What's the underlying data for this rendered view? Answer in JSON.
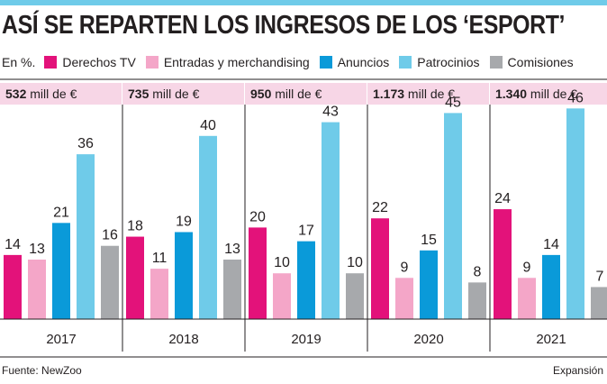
{
  "title": "ASÍ SE REPARTEN LOS INGRESOS DE LOS ‘ESPORT’",
  "unit": "En %.",
  "footer": {
    "source": "Fuente: NewZoo",
    "brand": "Expansión"
  },
  "chart_data": {
    "type": "bar",
    "title": "ASÍ SE REPARTEN LOS INGRESOS DE LOS ‘ESPORT’",
    "ylabel": "En %.",
    "xlabel": "",
    "ylim": [
      0,
      50
    ],
    "legend": "top",
    "grid": false,
    "categories": [
      "2017",
      "2018",
      "2019",
      "2020",
      "2021"
    ],
    "totals": [
      "532 mill de €",
      "735 mill de €",
      "950 mill de €",
      "1.173 mill de €",
      "1.340 mill de €"
    ],
    "series": [
      {
        "name": "Derechos TV",
        "color": "#e3127a",
        "values": [
          14,
          18,
          20,
          22,
          24
        ]
      },
      {
        "name": "Entradas y merchandising",
        "color": "#f4a6c8",
        "values": [
          13,
          11,
          10,
          9,
          9
        ]
      },
      {
        "name": "Anuncios",
        "color": "#0a9ad9",
        "values": [
          21,
          19,
          17,
          15,
          14
        ]
      },
      {
        "name": "Patrocinios",
        "color": "#6fcbe9",
        "values": [
          36,
          40,
          43,
          45,
          46
        ]
      },
      {
        "name": "Comisiones",
        "color": "#a7a9ac",
        "values": [
          16,
          13,
          10,
          8,
          7
        ]
      }
    ],
    "colors": {
      "total_band": "#f7d6e6",
      "top_bar": "#6fcbe9"
    }
  }
}
